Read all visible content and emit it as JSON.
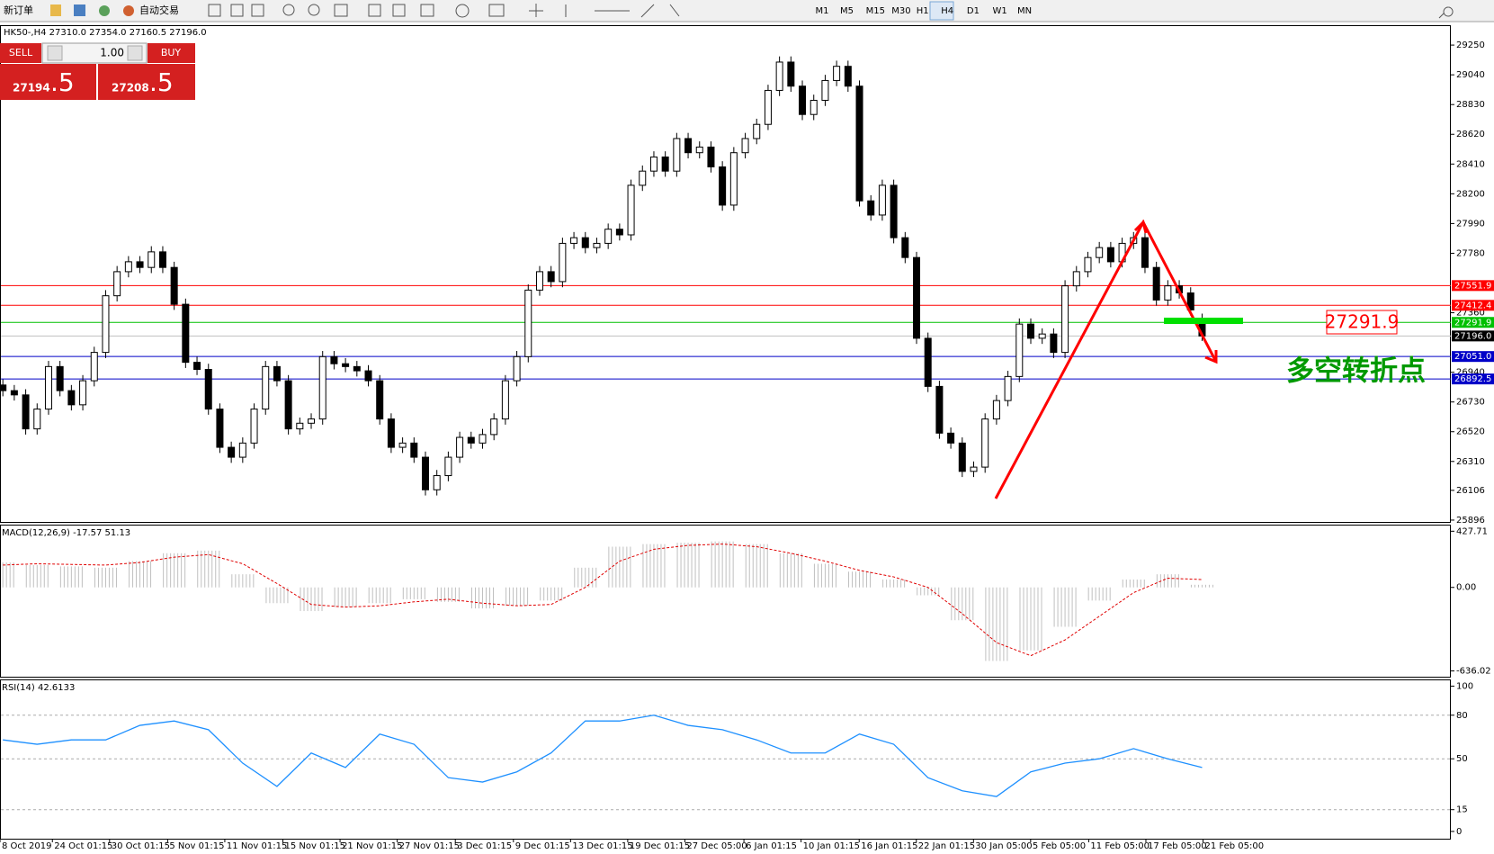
{
  "toolbar": {
    "new_order": "新订单",
    "auto_trading": "自动交易",
    "timeframes": [
      "M1",
      "M5",
      "M15",
      "M30",
      "H1",
      "H4",
      "D1",
      "W1",
      "MN"
    ]
  },
  "trade_panel": {
    "sell": "SELL",
    "lot": "1.00",
    "buy": "BUY",
    "sell_price": "27194",
    "sell_price_frac": ".5",
    "buy_price": "27208",
    "buy_price_frac": ".5"
  },
  "chart_data": [
    {
      "type": "candlestick",
      "title": "HK50-,H4  27310.0 27354.0 27160.5 27196.0",
      "ylim": [
        25883,
        29384
      ],
      "yticks": [
        29250,
        29040,
        28830,
        28620,
        28410,
        28200,
        27990,
        27780,
        27360,
        26940,
        26730,
        26520,
        26310,
        26106,
        25896
      ],
      "x_labels": [
        "8 Oct 2019",
        "24 Oct 01:15",
        "30 Oct 01:15",
        "5 Nov 01:15",
        "11 Nov 01:15",
        "15 Nov 01:15",
        "21 Nov 01:15",
        "27 Nov 01:15",
        "3 Dec 01:15",
        "9 Dec 01:15",
        "13 Dec 01:15",
        "19 Dec 01:15",
        "27 Dec 05:00",
        "6 Jan 01:15",
        "10 Jan 01:15",
        "16 Jan 01:15",
        "22 Jan 01:15",
        "30 Jan 05:00",
        "5 Feb 05:00",
        "11 Feb 05:00",
        "17 Feb 05:00",
        "21 Feb 05:00"
      ],
      "levels": [
        {
          "value": 27551.9,
          "label": "27551.9",
          "color": "#ff0000"
        },
        {
          "value": 27412.4,
          "label": "27412.4",
          "color": "#ff0000"
        },
        {
          "value": 27291.9,
          "label": "27291.9",
          "color": "#00c000"
        },
        {
          "value": 27196,
          "label": "27196.0",
          "color": "#000000"
        },
        {
          "value": 27051,
          "label": "27051.0",
          "color": "#0000c8"
        },
        {
          "value": 26892.5,
          "label": "26892.5",
          "color": "#0000c8"
        }
      ],
      "annotations": {
        "price_box": "27291.9",
        "text": "多空转折点"
      },
      "ohlc": [
        [
          26850,
          26890,
          26770,
          26810
        ],
        [
          26810,
          26850,
          26740,
          26780
        ],
        [
          26780,
          26820,
          26500,
          26540
        ],
        [
          26540,
          26720,
          26500,
          26680
        ],
        [
          26680,
          27020,
          26640,
          26980
        ],
        [
          26980,
          27020,
          26770,
          26810
        ],
        [
          26810,
          26850,
          26670,
          26710
        ],
        [
          26710,
          26920,
          26670,
          26880
        ],
        [
          26880,
          27120,
          26840,
          27080
        ],
        [
          27080,
          27520,
          27040,
          27480
        ],
        [
          27480,
          27690,
          27440,
          27650
        ],
        [
          27650,
          27760,
          27610,
          27720
        ],
        [
          27720,
          27760,
          27640,
          27680
        ],
        [
          27680,
          27830,
          27640,
          27790
        ],
        [
          27790,
          27830,
          27640,
          27680
        ],
        [
          27680,
          27720,
          27380,
          27420
        ],
        [
          27420,
          27460,
          26970,
          27010
        ],
        [
          27010,
          27050,
          26920,
          26960
        ],
        [
          26960,
          27000,
          26640,
          26680
        ],
        [
          26680,
          26720,
          26370,
          26410
        ],
        [
          26410,
          26450,
          26300,
          26340
        ],
        [
          26340,
          26480,
          26300,
          26440
        ],
        [
          26440,
          26720,
          26400,
          26680
        ],
        [
          26680,
          27020,
          26640,
          26980
        ],
        [
          26980,
          27020,
          26840,
          26880
        ],
        [
          26880,
          26920,
          26500,
          26540
        ],
        [
          26540,
          26620,
          26500,
          26580
        ],
        [
          26580,
          26650,
          26540,
          26610
        ],
        [
          26610,
          27090,
          26570,
          27050
        ],
        [
          27050,
          27090,
          26960,
          27000
        ],
        [
          27000,
          27040,
          26940,
          26980
        ],
        [
          26980,
          27020,
          26910,
          26950
        ],
        [
          26950,
          26990,
          26840,
          26880
        ],
        [
          26880,
          26920,
          26570,
          26610
        ],
        [
          26610,
          26650,
          26370,
          26410
        ],
        [
          26410,
          26480,
          26370,
          26440
        ],
        [
          26440,
          26480,
          26300,
          26340
        ],
        [
          26340,
          26380,
          26070,
          26110
        ],
        [
          26110,
          26250,
          26070,
          26210
        ],
        [
          26210,
          26380,
          26170,
          26340
        ],
        [
          26340,
          26520,
          26300,
          26480
        ],
        [
          26480,
          26520,
          26400,
          26440
        ],
        [
          26440,
          26540,
          26400,
          26500
        ],
        [
          26500,
          26650,
          26460,
          26610
        ],
        [
          26610,
          26920,
          26570,
          26880
        ],
        [
          26880,
          27090,
          26840,
          27050
        ],
        [
          27050,
          27560,
          27010,
          27520
        ],
        [
          27520,
          27690,
          27480,
          27650
        ],
        [
          27650,
          27690,
          27540,
          27580
        ],
        [
          27580,
          27890,
          27540,
          27850
        ],
        [
          27850,
          27930,
          27810,
          27890
        ],
        [
          27890,
          27930,
          27780,
          27820
        ],
        [
          27820,
          27890,
          27780,
          27850
        ],
        [
          27850,
          27990,
          27810,
          27950
        ],
        [
          27950,
          27990,
          27870,
          27910
        ],
        [
          27910,
          28300,
          27870,
          28260
        ],
        [
          28260,
          28400,
          28220,
          28360
        ],
        [
          28360,
          28500,
          28320,
          28460
        ],
        [
          28460,
          28500,
          28320,
          28360
        ],
        [
          28360,
          28630,
          28320,
          28590
        ],
        [
          28590,
          28630,
          28450,
          28490
        ],
        [
          28490,
          28570,
          28450,
          28530
        ],
        [
          28530,
          28570,
          28350,
          28390
        ],
        [
          28390,
          28430,
          28080,
          28120
        ],
        [
          28120,
          28530,
          28080,
          28490
        ],
        [
          28490,
          28630,
          28450,
          28590
        ],
        [
          28590,
          28730,
          28550,
          28690
        ],
        [
          28690,
          28970,
          28650,
          28930
        ],
        [
          28930,
          29170,
          28890,
          29130
        ],
        [
          29130,
          29170,
          28920,
          28960
        ],
        [
          28960,
          29000,
          28720,
          28760
        ],
        [
          28760,
          28900,
          28720,
          28860
        ],
        [
          28860,
          29040,
          28820,
          29000
        ],
        [
          29000,
          29140,
          28960,
          29100
        ],
        [
          29100,
          29140,
          28920,
          28960
        ],
        [
          28960,
          29000,
          28110,
          28150
        ],
        [
          28150,
          28190,
          28010,
          28050
        ],
        [
          28050,
          28300,
          28010,
          28260
        ],
        [
          28260,
          28300,
          27850,
          27890
        ],
        [
          27890,
          27930,
          27710,
          27750
        ],
        [
          27750,
          27790,
          27140,
          27180
        ],
        [
          27180,
          27220,
          26800,
          26840
        ],
        [
          26840,
          26880,
          26470,
          26510
        ],
        [
          26510,
          26550,
          26400,
          26440
        ],
        [
          26440,
          26480,
          26200,
          26240
        ],
        [
          26240,
          26310,
          26200,
          26270
        ],
        [
          26270,
          26650,
          26230,
          26610
        ],
        [
          26610,
          26780,
          26570,
          26740
        ],
        [
          26740,
          26950,
          26700,
          26910
        ],
        [
          26910,
          27320,
          26870,
          27280
        ],
        [
          27280,
          27320,
          27140,
          27180
        ],
        [
          27180,
          27250,
          27140,
          27210
        ],
        [
          27210,
          27250,
          27040,
          27080
        ],
        [
          27080,
          27590,
          27040,
          27550
        ],
        [
          27550,
          27690,
          27510,
          27650
        ],
        [
          27650,
          27790,
          27610,
          27750
        ],
        [
          27750,
          27860,
          27710,
          27820
        ],
        [
          27820,
          27860,
          27680,
          27720
        ],
        [
          27720,
          27890,
          27680,
          27850
        ],
        [
          27850,
          27930,
          27810,
          27890
        ],
        [
          27890,
          27930,
          27640,
          27680
        ],
        [
          27680,
          27720,
          27410,
          27450
        ],
        [
          27450,
          27590,
          27410,
          27550
        ],
        [
          27550,
          27590,
          27460,
          27500
        ],
        [
          27500,
          27540,
          27340,
          27380
        ],
        [
          27310,
          27354,
          27160.5,
          27196
        ]
      ]
    },
    {
      "type": "macd",
      "title": "MACD(12,26,9) -17.57 51.13",
      "ylim": [
        -680,
        471
      ],
      "yticks": [
        {
          "value": 427.71,
          "label": "427.71"
        },
        {
          "value": 0,
          "label": "0.00"
        },
        {
          "value": -636.02,
          "label": "-636.02"
        }
      ],
      "histogram": {
        "color": "#c0c0c0",
        "values": [
          190,
          170,
          160,
          150,
          200,
          260,
          280,
          100,
          -120,
          -180,
          -150,
          -120,
          -90,
          -110,
          -160,
          -140,
          -100,
          150,
          310,
          330,
          340,
          350,
          330,
          260,
          180,
          120,
          60,
          -60,
          -250,
          -560,
          -480,
          -300,
          -100,
          60,
          100,
          20
        ]
      },
      "signal": {
        "color": "#e00000",
        "values": [
          170,
          180,
          175,
          170,
          190,
          230,
          250,
          180,
          30,
          -130,
          -150,
          -140,
          -110,
          -90,
          -120,
          -140,
          -130,
          0,
          200,
          290,
          320,
          330,
          310,
          260,
          200,
          130,
          80,
          0,
          -200,
          -420,
          -520,
          -400,
          -220,
          -40,
          70,
          60
        ]
      }
    },
    {
      "type": "line",
      "title": "RSI(14) 42.6133",
      "ylim": [
        -5,
        104
      ],
      "yticks": [
        100,
        80,
        50,
        15,
        0
      ],
      "color": "#1e90ff",
      "values": [
        63,
        60,
        63,
        63,
        73,
        76,
        70,
        47,
        31,
        54,
        44,
        67,
        60,
        37,
        34,
        41,
        54,
        76,
        76,
        80,
        73,
        70,
        63,
        54,
        54,
        67,
        60,
        37,
        28,
        24,
        41,
        47,
        50,
        57,
        50,
        44
      ]
    }
  ]
}
